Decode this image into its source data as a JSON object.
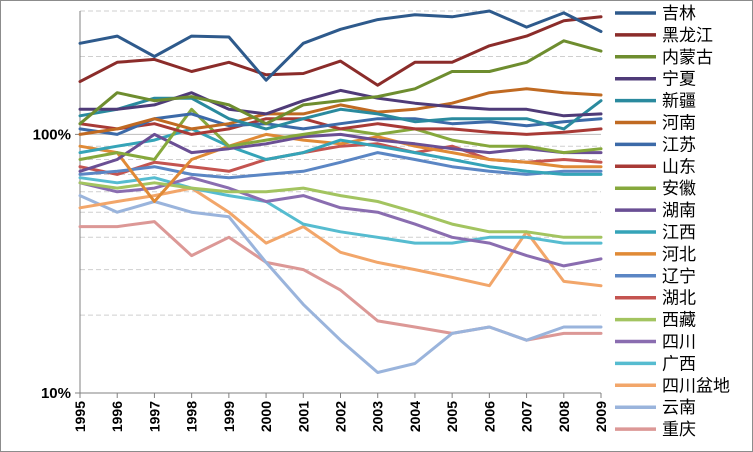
{
  "chart_data": {
    "type": "line",
    "title": "",
    "xlabel": "",
    "ylabel": "",
    "y_scale": "log",
    "ylim": [
      0.1,
      3.0
    ],
    "y_ticks": [
      {
        "value": 0.1,
        "label": "10%"
      },
      {
        "value": 1.0,
        "label": "100%"
      }
    ],
    "minor_gridlines": true,
    "legend_position": "right",
    "x": [
      "1995",
      "1996",
      "1997",
      "1998",
      "1999",
      "2000",
      "2001",
      "2002",
      "2003",
      "2004",
      "2005",
      "2006",
      "2007",
      "2008",
      "2009"
    ],
    "series": [
      {
        "name": "吉林",
        "color": "#2e5a8c",
        "values": [
          2.25,
          2.4,
          2.0,
          2.4,
          2.38,
          1.62,
          2.25,
          2.55,
          2.78,
          2.9,
          2.85,
          3.0,
          2.6,
          2.95,
          2.5
        ]
      },
      {
        "name": "黑龙江",
        "color": "#8b2c2a",
        "values": [
          1.6,
          1.9,
          1.95,
          1.75,
          1.9,
          1.7,
          1.72,
          1.92,
          1.55,
          1.9,
          1.9,
          2.2,
          2.4,
          2.75,
          2.85
        ]
      },
      {
        "name": "内蒙古",
        "color": "#6e8d2f",
        "values": [
          1.1,
          1.45,
          1.35,
          1.4,
          1.3,
          1.1,
          1.3,
          1.35,
          1.4,
          1.5,
          1.75,
          1.75,
          1.9,
          2.3,
          2.1
        ]
      },
      {
        "name": "宁夏",
        "color": "#4f3b78",
        "values": [
          1.25,
          1.25,
          1.3,
          1.45,
          1.25,
          1.2,
          1.35,
          1.48,
          1.38,
          1.32,
          1.28,
          1.25,
          1.25,
          1.18,
          1.2
        ]
      },
      {
        "name": "新疆",
        "color": "#2a8a9e",
        "values": [
          1.18,
          1.25,
          1.38,
          1.38,
          1.15,
          1.05,
          1.15,
          1.25,
          1.2,
          1.12,
          1.15,
          1.15,
          1.15,
          1.05,
          1.35
        ]
      },
      {
        "name": "河南",
        "color": "#c06a22",
        "values": [
          1.0,
          1.05,
          1.15,
          1.05,
          1.1,
          1.2,
          1.2,
          1.3,
          1.22,
          1.25,
          1.32,
          1.45,
          1.5,
          1.45,
          1.42
        ]
      },
      {
        "name": "江苏",
        "color": "#3c6aa8",
        "values": [
          1.05,
          1.0,
          1.15,
          1.2,
          1.08,
          1.1,
          1.05,
          1.1,
          1.15,
          1.15,
          1.1,
          1.12,
          1.08,
          1.12,
          1.15
        ]
      },
      {
        "name": "山东",
        "color": "#a83a36",
        "values": [
          1.1,
          1.05,
          1.1,
          1.0,
          1.05,
          1.15,
          1.15,
          1.05,
          1.1,
          1.05,
          1.05,
          1.02,
          1.0,
          1.02,
          1.05
        ]
      },
      {
        "name": "安徽",
        "color": "#86a83c",
        "values": [
          0.8,
          0.85,
          0.8,
          1.25,
          0.9,
          0.95,
          1.0,
          1.05,
          1.0,
          1.05,
          0.95,
          0.9,
          0.9,
          0.85,
          0.88
        ]
      },
      {
        "name": "湖南",
        "color": "#6a4f94",
        "values": [
          0.72,
          0.8,
          1.0,
          0.85,
          0.88,
          0.92,
          0.98,
          1.0,
          0.95,
          0.92,
          0.88,
          0.85,
          0.88,
          0.85,
          0.85
        ]
      },
      {
        "name": "江西",
        "color": "#35a4b8",
        "values": [
          0.85,
          0.9,
          0.95,
          1.05,
          0.9,
          0.8,
          0.85,
          0.95,
          0.9,
          0.85,
          0.8,
          0.75,
          0.72,
          0.7,
          0.7
        ]
      },
      {
        "name": "河北",
        "color": "#e08a36",
        "values": [
          0.9,
          0.85,
          0.55,
          0.8,
          0.9,
          1.0,
          0.95,
          0.92,
          0.98,
          0.9,
          0.85,
          0.8,
          0.78,
          0.75,
          0.75
        ]
      },
      {
        "name": "辽宁",
        "color": "#5b86c4",
        "values": [
          0.7,
          0.72,
          0.75,
          0.7,
          0.68,
          0.7,
          0.72,
          0.78,
          0.85,
          0.8,
          0.75,
          0.72,
          0.7,
          0.72,
          0.72
        ]
      },
      {
        "name": "湖北",
        "color": "#c45450",
        "values": [
          0.75,
          0.7,
          0.78,
          0.75,
          0.72,
          0.8,
          0.85,
          0.9,
          0.92,
          0.85,
          0.9,
          0.8,
          0.78,
          0.8,
          0.78
        ]
      },
      {
        "name": "西藏",
        "color": "#a3c460",
        "values": [
          0.65,
          0.62,
          0.65,
          0.62,
          0.6,
          0.6,
          0.62,
          0.58,
          0.55,
          0.5,
          0.45,
          0.42,
          0.42,
          0.4,
          0.4
        ]
      },
      {
        "name": "四川",
        "color": "#8a6db0",
        "values": [
          0.65,
          0.6,
          0.62,
          0.68,
          0.62,
          0.55,
          0.58,
          0.52,
          0.5,
          0.45,
          0.4,
          0.38,
          0.34,
          0.31,
          0.33
        ]
      },
      {
        "name": "广西",
        "color": "#56bcd0",
        "values": [
          0.68,
          0.65,
          0.68,
          0.62,
          0.58,
          0.55,
          0.45,
          0.42,
          0.4,
          0.38,
          0.38,
          0.4,
          0.4,
          0.38,
          0.38
        ]
      },
      {
        "name": "四川盆地",
        "color": "#f2a66a",
        "values": [
          0.52,
          0.55,
          0.58,
          0.62,
          0.5,
          0.38,
          0.44,
          0.35,
          0.32,
          0.3,
          0.28,
          0.26,
          0.42,
          0.27,
          0.26
        ]
      },
      {
        "name": "云南",
        "color": "#9ab4dc",
        "values": [
          0.58,
          0.5,
          0.55,
          0.5,
          0.48,
          0.32,
          0.22,
          0.16,
          0.12,
          0.13,
          0.17,
          0.18,
          0.16,
          0.18,
          0.18
        ]
      },
      {
        "name": "重庆",
        "color": "#dc9896",
        "values": [
          0.44,
          0.44,
          0.46,
          0.34,
          0.4,
          0.32,
          0.3,
          0.25,
          0.19,
          0.18,
          0.17,
          0.18,
          0.16,
          0.17,
          0.17
        ]
      }
    ]
  }
}
